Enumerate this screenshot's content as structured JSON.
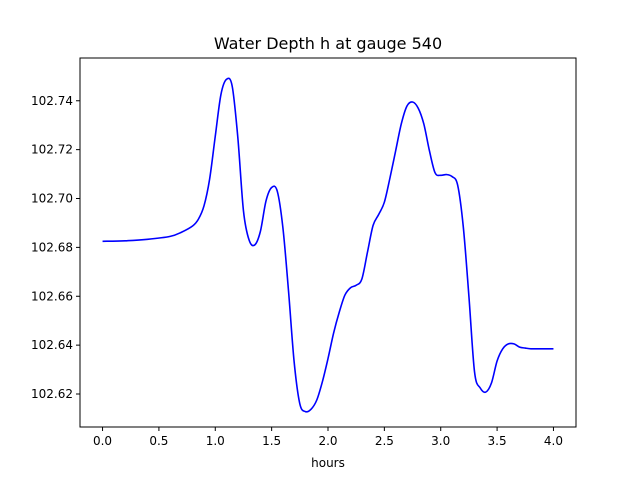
{
  "chart_data": {
    "type": "line",
    "title": "Water Depth h at gauge 540",
    "xlabel": "hours",
    "ylabel": "",
    "xlim": [
      -0.2,
      4.2
    ],
    "ylim": [
      102.6065,
      102.7575
    ],
    "xticks": [
      0.0,
      0.5,
      1.0,
      1.5,
      2.0,
      2.5,
      3.0,
      3.5,
      4.0
    ],
    "xtick_labels": [
      "0.0",
      "0.5",
      "1.0",
      "1.5",
      "2.0",
      "2.5",
      "3.0",
      "3.5",
      "4.0"
    ],
    "yticks": [
      102.62,
      102.64,
      102.66,
      102.68,
      102.7,
      102.72,
      102.74
    ],
    "ytick_labels": [
      "102.62",
      "102.64",
      "102.66",
      "102.68",
      "102.70",
      "102.72",
      "102.74"
    ],
    "grid": false,
    "series": [
      {
        "color": "#0000ff",
        "x": [
          0.0,
          0.2,
          0.4,
          0.6,
          0.7,
          0.8,
          0.85,
          0.9,
          0.95,
          1.0,
          1.05,
          1.1,
          1.15,
          1.2,
          1.25,
          1.3,
          1.35,
          1.4,
          1.45,
          1.5,
          1.55,
          1.6,
          1.65,
          1.7,
          1.75,
          1.8,
          1.85,
          1.9,
          1.95,
          2.0,
          2.05,
          2.1,
          2.15,
          2.2,
          2.25,
          2.3,
          2.35,
          2.4,
          2.45,
          2.5,
          2.55,
          2.6,
          2.65,
          2.7,
          2.75,
          2.8,
          2.85,
          2.9,
          2.95,
          3.0,
          3.05,
          3.1,
          3.15,
          3.2,
          3.25,
          3.3,
          3.35,
          3.4,
          3.45,
          3.5,
          3.55,
          3.6,
          3.65,
          3.7,
          3.75,
          3.8,
          3.85,
          3.9,
          3.95,
          4.0
        ],
        "values": [
          102.6825,
          102.6827,
          102.6833,
          102.6845,
          102.6862,
          102.6888,
          102.6915,
          102.697,
          102.708,
          102.7255,
          102.7425,
          102.7488,
          102.746,
          102.725,
          102.695,
          102.683,
          102.681,
          102.6865,
          102.699,
          102.7045,
          102.703,
          102.688,
          102.662,
          102.633,
          102.616,
          102.6128,
          102.6138,
          102.6175,
          102.625,
          102.6345,
          102.645,
          102.6535,
          102.6605,
          102.6635,
          102.6645,
          102.667,
          102.678,
          102.689,
          102.6935,
          102.6985,
          102.7085,
          102.7195,
          102.7305,
          102.7378,
          102.7395,
          102.737,
          102.7305,
          102.7195,
          102.7105,
          102.7095,
          102.7098,
          102.709,
          102.7055,
          102.6885,
          102.66,
          102.629,
          102.6225,
          102.6208,
          102.6245,
          102.6335,
          102.6385,
          102.6405,
          102.6405,
          102.6392,
          102.6388,
          102.6385,
          102.6385,
          102.6385,
          102.6385,
          102.6385
        ]
      }
    ]
  }
}
